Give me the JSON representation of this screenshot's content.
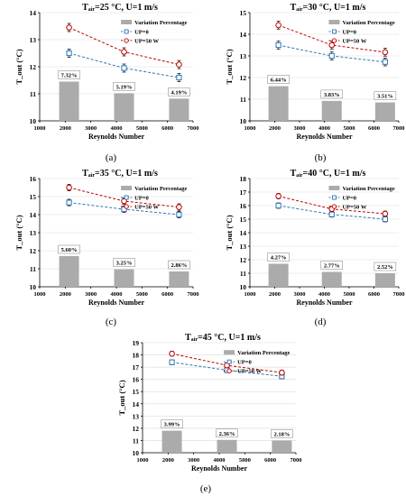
{
  "colors": {
    "bar": "#ababab",
    "up0": "#2e75b6",
    "up50": "#c00000",
    "error": "#000000",
    "axis": "#000000",
    "grid": "#d9d9d9"
  },
  "chart_data": [
    {
      "type": "bar+line",
      "panel_label": "(a)",
      "title": "Tₐᵢᵣ=25 °C, U=1 m/s",
      "xlabel": "Reynolds Number",
      "ylabel": "T_out (°C)",
      "xlim": [
        1000,
        7000
      ],
      "ylim": [
        10,
        14
      ],
      "xticks": [
        1000,
        2000,
        3000,
        4000,
        5000,
        6000,
        7000
      ],
      "yticks": [
        10,
        11,
        12,
        13,
        14
      ],
      "legend": [
        "Variation Percentage",
        "UP=0",
        "UP=50 W"
      ],
      "bars": {
        "name": "Variation Percentage",
        "x": [
          2150,
          4300,
          6450
        ],
        "values": [
          11.45,
          11.02,
          10.82
        ],
        "labels": [
          "7.32%",
          "5.19%",
          "4.19%"
        ]
      },
      "series": [
        {
          "name": "UP=0",
          "x": [
            2150,
            4300,
            6450
          ],
          "values": [
            12.5,
            11.95,
            11.6
          ],
          "error": 0.15
        },
        {
          "name": "UP=50 W",
          "x": [
            2150,
            4300,
            6450
          ],
          "values": [
            13.45,
            12.55,
            12.08
          ],
          "error": 0.15
        }
      ]
    },
    {
      "type": "bar+line",
      "panel_label": "(b)",
      "title": "Tₐᵢᵣ=30 °C, U=1 m/s",
      "xlabel": "Reynolds Number",
      "ylabel": "T_out (°C)",
      "xlim": [
        1000,
        7000
      ],
      "ylim": [
        10,
        15
      ],
      "xticks": [
        1000,
        2000,
        3000,
        4000,
        5000,
        6000,
        7000
      ],
      "yticks": [
        10,
        11,
        12,
        13,
        14,
        15
      ],
      "legend": [
        "Variation Percentage",
        "UP=0",
        "UP=50 W"
      ],
      "bars": {
        "name": "Variation Percentage",
        "x": [
          2150,
          4300,
          6450
        ],
        "values": [
          11.6,
          10.92,
          10.85
        ],
        "labels": [
          "6.44%",
          "3.83%",
          "3.51%"
        ]
      },
      "series": [
        {
          "name": "UP=0",
          "x": [
            2150,
            4300,
            6450
          ],
          "values": [
            13.5,
            13.0,
            12.72
          ],
          "error": 0.18
        },
        {
          "name": "UP=50 W",
          "x": [
            2150,
            4300,
            6450
          ],
          "values": [
            14.42,
            13.5,
            13.17
          ],
          "error": 0.18
        }
      ]
    },
    {
      "type": "bar+line",
      "panel_label": "(c)",
      "title": "Tₐᵢᵣ=35 °C, U=1 m/s",
      "xlabel": "Reynolds Number",
      "ylabel": "T_out (°C)",
      "xlim": [
        1000,
        7000
      ],
      "ylim": [
        10,
        16
      ],
      "xticks": [
        1000,
        2000,
        3000,
        4000,
        5000,
        6000,
        7000
      ],
      "yticks": [
        10,
        11,
        12,
        13,
        14,
        15,
        16
      ],
      "legend": [
        "Variation Percentage",
        "UP=0",
        "UP=50 W"
      ],
      "bars": {
        "name": "Variation Percentage",
        "x": [
          2150,
          4300,
          6450
        ],
        "values": [
          11.7,
          10.97,
          10.85
        ],
        "labels": [
          "5.60%",
          "3.25%",
          "2.86%"
        ]
      },
      "series": [
        {
          "name": "UP=0",
          "x": [
            2150,
            4300,
            6450
          ],
          "values": [
            14.67,
            14.3,
            14.0
          ],
          "error": 0.18
        },
        {
          "name": "UP=50 W",
          "x": [
            2150,
            4300,
            6450
          ],
          "values": [
            15.5,
            14.75,
            14.42
          ],
          "error": 0.18
        }
      ]
    },
    {
      "type": "bar+line",
      "panel_label": "(d)",
      "title": "Tₐᵢᵣ=40 °C, U=1 m/s",
      "xlabel": "Reynolds Number",
      "ylabel": "T_out (°C)",
      "xlim": [
        1000,
        7000
      ],
      "ylim": [
        10,
        18
      ],
      "xticks": [
        1000,
        2000,
        3000,
        4000,
        5000,
        6000,
        7000
      ],
      "yticks": [
        10,
        11,
        12,
        13,
        14,
        15,
        16,
        17,
        18
      ],
      "legend": [
        "Variation Percentage",
        "UP=0",
        "UP=50 W"
      ],
      "bars": {
        "name": "Variation Percentage",
        "x": [
          2150,
          4300,
          6450
        ],
        "values": [
          11.7,
          11.1,
          11.0
        ],
        "labels": [
          "4.27%",
          "2.77%",
          "2.52%"
        ]
      },
      "series": [
        {
          "name": "UP=0",
          "x": [
            2150,
            4300,
            6450
          ],
          "values": [
            16.0,
            15.35,
            15.0
          ],
          "error": 0.2
        },
        {
          "name": "UP=50 W",
          "x": [
            2150,
            4300,
            6450
          ],
          "values": [
            16.7,
            15.75,
            15.4
          ],
          "error": 0.2
        }
      ]
    },
    {
      "type": "bar+line",
      "panel_label": "(e)",
      "title": "Tₐᵢᵣ=45 °C, U=1 m/s",
      "xlabel": "Reynolds Number",
      "ylabel": "T_out (°C)",
      "xlim": [
        1000,
        7000
      ],
      "ylim": [
        10,
        19
      ],
      "xticks": [
        1000,
        2000,
        3000,
        4000,
        5000,
        6000,
        7000
      ],
      "yticks": [
        10,
        11,
        12,
        13,
        14,
        15,
        16,
        17,
        18,
        19
      ],
      "legend": [
        "Variation Percentage",
        "UP=0",
        "UP=50 W"
      ],
      "bars": {
        "name": "Variation Percentage",
        "x": [
          2150,
          4300,
          6450
        ],
        "values": [
          11.8,
          11.05,
          11.0
        ],
        "labels": [
          "3.99%",
          "2.36%",
          "2.18%"
        ]
      },
      "series": [
        {
          "name": "UP=0",
          "x": [
            2150,
            4300,
            6450
          ],
          "values": [
            17.4,
            16.75,
            16.25
          ],
          "error": 0.2
        },
        {
          "name": "UP=50 W",
          "x": [
            2150,
            4300,
            6450
          ],
          "values": [
            18.1,
            17.15,
            16.55
          ],
          "error": 0.2
        }
      ]
    }
  ]
}
